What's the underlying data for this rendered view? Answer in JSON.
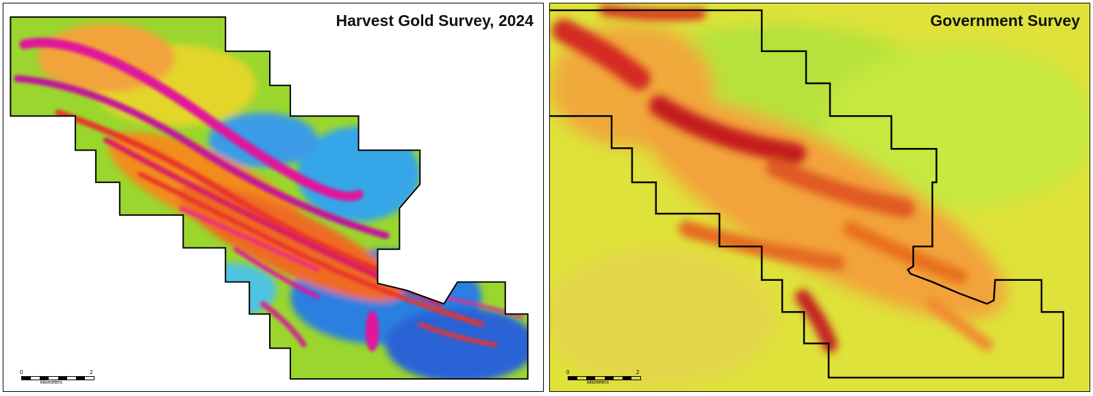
{
  "panels": [
    {
      "id": "left",
      "title": "Harvest Gold Survey, 2024",
      "scale": {
        "start": "0",
        "end": "2",
        "unit": "kilometers"
      }
    },
    {
      "id": "right",
      "title": "Government Survey",
      "scale": {
        "start": "0",
        "end": "2",
        "unit": "kilometers"
      }
    }
  ],
  "colors": {
    "high_magnetic": "#e0189c",
    "mid_high": "#e8362a",
    "mid": "#f28c1e",
    "low_mid": "#8fdc2a",
    "low": "#2b7fe0",
    "regional_background": "#dfe23a",
    "boundary": "#000000"
  }
}
